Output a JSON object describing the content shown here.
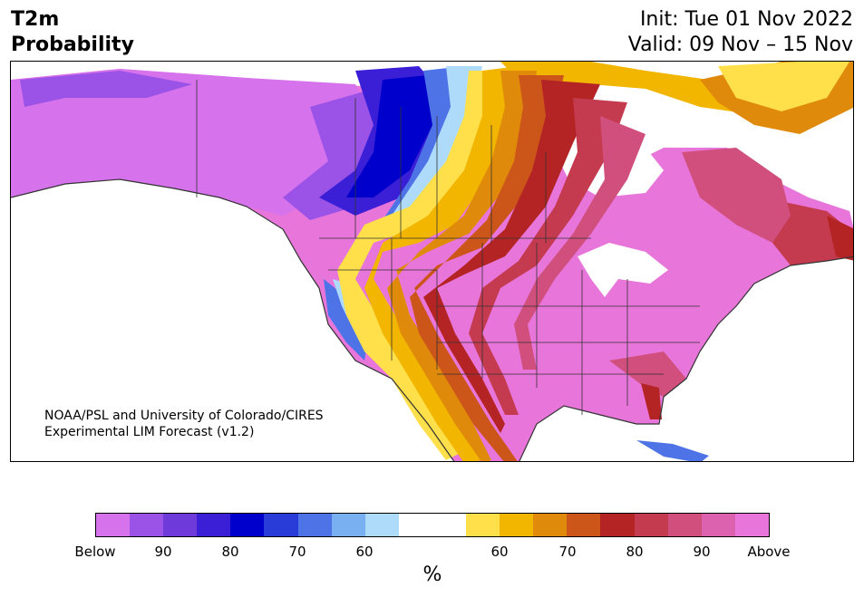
{
  "header": {
    "title_line1": "T2m",
    "title_line2": "Probability",
    "init_text": "Init: Tue 01 Nov 2022",
    "valid_text": "Valid: 09 Nov – 15 Nov"
  },
  "credit": {
    "line1": "NOAA/PSL and University of Colorado/CIRES",
    "line2": "Experimental LIM Forecast (v1.2)"
  },
  "colorbar": {
    "colors": [
      "#d672ec",
      "#9b52e6",
      "#6e3ad9",
      "#3a1fd6",
      "#0000cc",
      "#2a3cd8",
      "#4d73e6",
      "#79b0f1",
      "#aedbfa",
      "#ffffff",
      "#ffffff",
      "#ffe04a",
      "#f2b500",
      "#e08a0c",
      "#cc5519",
      "#b42424",
      "#c43a4f",
      "#d04f7c",
      "#dc62b0",
      "#e876da"
    ],
    "tick_labels": [
      "Below",
      "90",
      "80",
      "70",
      "60",
      "60",
      "70",
      "80",
      "90",
      "Above"
    ],
    "units": "%"
  },
  "map_colors": {
    "below_extreme": "#d672ec",
    "below_90": "#9b52e6",
    "below_80": "#3a1fd6",
    "below_75": "#0000cc",
    "below_70": "#4d73e6",
    "below_60": "#aedbfa",
    "neutral": "#ffffff",
    "above_55": "#ffe04a",
    "above_60": "#f2b500",
    "above_65": "#e08a0c",
    "above_70": "#cc5519",
    "above_80": "#b42424",
    "above_85": "#c43a4f",
    "above_90": "#d04f7c",
    "above_extreme": "#e876da",
    "borders": "#333333"
  }
}
